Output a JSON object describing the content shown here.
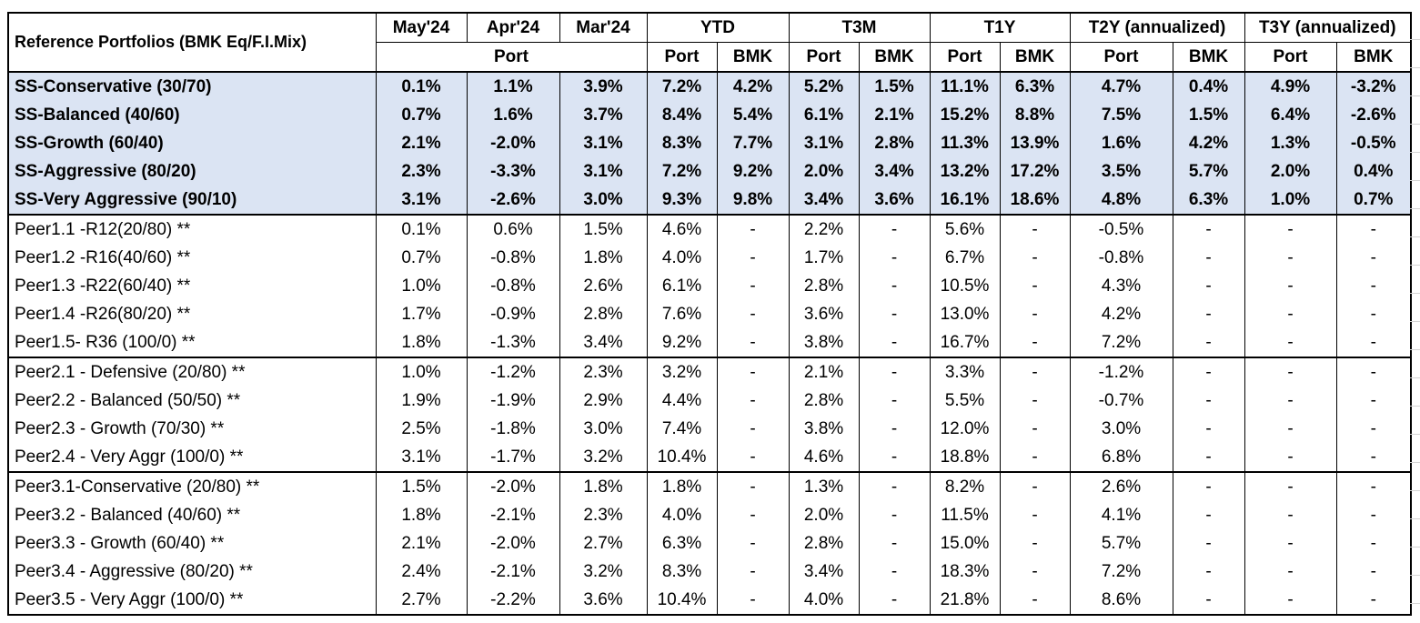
{
  "header": {
    "title": "Reference Portfolios (BMK Eq/F.I.Mix)",
    "periods": [
      "May'24",
      "Apr'24",
      "Mar'24"
    ],
    "port_label": "Port",
    "groups": [
      "YTD",
      "T3M",
      "T1Y",
      "T2Y (annualized)",
      "T3Y (annualized)"
    ],
    "sub_port": "Port",
    "sub_bmk": "BMK"
  },
  "ss_rows": [
    [
      "SS-Conservative (30/70)",
      "0.1%",
      "1.1%",
      "3.9%",
      "7.2%",
      "4.2%",
      "5.2%",
      "1.5%",
      "11.1%",
      "6.3%",
      "4.7%",
      "0.4%",
      "4.9%",
      "-3.2%"
    ],
    [
      "SS-Balanced (40/60)",
      "0.7%",
      "1.6%",
      "3.7%",
      "8.4%",
      "5.4%",
      "6.1%",
      "2.1%",
      "15.2%",
      "8.8%",
      "7.5%",
      "1.5%",
      "6.4%",
      "-2.6%"
    ],
    [
      "SS-Growth (60/40)",
      "2.1%",
      "-2.0%",
      "3.1%",
      "8.3%",
      "7.7%",
      "3.1%",
      "2.8%",
      "11.3%",
      "13.9%",
      "1.6%",
      "4.2%",
      "1.3%",
      "-0.5%"
    ],
    [
      "SS-Aggressive (80/20)",
      "2.3%",
      "-3.3%",
      "3.1%",
      "7.2%",
      "9.2%",
      "2.0%",
      "3.4%",
      "13.2%",
      "17.2%",
      "3.5%",
      "5.7%",
      "2.0%",
      "0.4%"
    ],
    [
      "SS-Very Aggressive (90/10)",
      "3.1%",
      "-2.6%",
      "3.0%",
      "9.3%",
      "9.8%",
      "3.4%",
      "3.6%",
      "16.1%",
      "18.6%",
      "4.8%",
      "6.3%",
      "1.0%",
      "0.7%"
    ]
  ],
  "peer1_rows": [
    [
      "Peer1.1 -R12(20/80) **",
      "0.1%",
      "0.6%",
      "1.5%",
      "4.6%",
      "-",
      "2.2%",
      "-",
      "5.6%",
      "-",
      "-0.5%",
      "-",
      "-",
      "-"
    ],
    [
      "Peer1.2 -R16(40/60) **",
      "0.7%",
      "-0.8%",
      "1.8%",
      "4.0%",
      "-",
      "1.7%",
      "-",
      "6.7%",
      "-",
      "-0.8%",
      "-",
      "-",
      "-"
    ],
    [
      "Peer1.3 -R22(60/40) **",
      "1.0%",
      "-0.8%",
      "2.6%",
      "6.1%",
      "-",
      "2.8%",
      "-",
      "10.5%",
      "-",
      "4.3%",
      "-",
      "-",
      "-"
    ],
    [
      "Peer1.4 -R26(80/20) **",
      "1.7%",
      "-0.9%",
      "2.8%",
      "7.6%",
      "-",
      "3.6%",
      "-",
      "13.0%",
      "-",
      "4.2%",
      "-",
      "-",
      "-"
    ],
    [
      "Peer1.5- R36 (100/0) **",
      "1.8%",
      "-1.3%",
      "3.4%",
      "9.2%",
      "-",
      "3.8%",
      "-",
      "16.7%",
      "-",
      "7.2%",
      "-",
      "-",
      "-"
    ]
  ],
  "peer2_rows": [
    [
      "Peer2.1  - Defensive  (20/80) **",
      "1.0%",
      "-1.2%",
      "2.3%",
      "3.2%",
      "-",
      "2.1%",
      "-",
      "3.3%",
      "-",
      "-1.2%",
      "-",
      "-",
      "-"
    ],
    [
      "Peer2.2  - Balanced (50/50) **",
      "1.9%",
      "-1.9%",
      "2.9%",
      "4.4%",
      "-",
      "2.8%",
      "-",
      "5.5%",
      "-",
      "-0.7%",
      "-",
      "-",
      "-"
    ],
    [
      "Peer2.3  - Growth  (70/30) **",
      "2.5%",
      "-1.8%",
      "3.0%",
      "7.4%",
      "-",
      "3.8%",
      "-",
      "12.0%",
      "-",
      "3.0%",
      "-",
      "-",
      "-"
    ],
    [
      "Peer2.4  - Very Aggr  (100/0) **",
      "3.1%",
      "-1.7%",
      "3.2%",
      "10.4%",
      "-",
      "4.6%",
      "-",
      "18.8%",
      "-",
      "6.8%",
      "-",
      "-",
      "-"
    ]
  ],
  "peer3_rows": [
    [
      "Peer3.1-Conservative (20/80) **",
      "1.5%",
      "-2.0%",
      "1.8%",
      "1.8%",
      "-",
      "1.3%",
      "-",
      "8.2%",
      "-",
      "2.6%",
      "-",
      "-",
      "-"
    ],
    [
      "Peer3.2 - Balanced  (40/60) **",
      "1.8%",
      "-2.1%",
      "2.3%",
      "4.0%",
      "-",
      "2.0%",
      "-",
      "11.5%",
      "-",
      "4.1%",
      "-",
      "-",
      "-"
    ],
    [
      "Peer3.3 - Growth  (60/40) **",
      "2.1%",
      "-2.0%",
      "2.7%",
      "6.3%",
      "-",
      "2.8%",
      "-",
      "15.0%",
      "-",
      "5.7%",
      "-",
      "-",
      "-"
    ],
    [
      "Peer3.4 - Aggressive  (80/20) **",
      "2.4%",
      "-2.1%",
      "3.2%",
      "8.3%",
      "-",
      "3.4%",
      "-",
      "18.3%",
      "-",
      "7.2%",
      "-",
      "-",
      "-"
    ],
    [
      "Peer3.5  - Very Aggr (100/0) **",
      "2.7%",
      "-2.2%",
      "3.6%",
      "10.4%",
      "-",
      "4.0%",
      "-",
      "21.8%",
      "-",
      "8.6%",
      "-",
      "-",
      "-"
    ]
  ],
  "colors": {
    "ss_fill": "#dbe4f3",
    "border": "#000000"
  }
}
